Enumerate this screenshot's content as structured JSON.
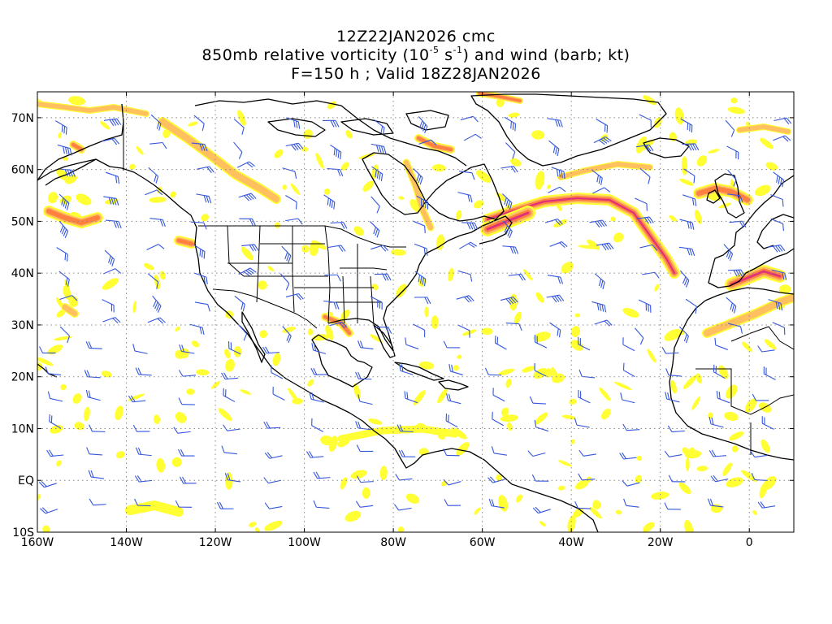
{
  "title": {
    "line1": "12Z22JAN2026 cmc",
    "line2_a": "850mb relative vorticity (10",
    "line2_exp1": "-5",
    "line2_b": " s",
    "line2_exp2": "-1",
    "line2_c": ") and wind (barb; kt)",
    "line3": "F=150 h ; Valid 18Z28JAN2026"
  },
  "map": {
    "projection": "cylindrical equidistant",
    "lon_range": [
      -160,
      10
    ],
    "lat_range": [
      -10,
      75
    ],
    "gridlines": "dotted",
    "lat_labels": [
      "70N",
      "60N",
      "50N",
      "40N",
      "30N",
      "20N",
      "10N",
      "EQ",
      "10S"
    ],
    "lon_labels": [
      "160W",
      "140W",
      "120W",
      "100W",
      "80W",
      "60W",
      "40W",
      "20W",
      "0"
    ],
    "colors": {
      "coast": "#000000",
      "barb": "#3355dd",
      "shade_low": "#ffff33",
      "shade_mid": "#ffc060",
      "shade_high": "#ff8040",
      "shade_max": "#e0307a",
      "grid": "#888888"
    }
  }
}
